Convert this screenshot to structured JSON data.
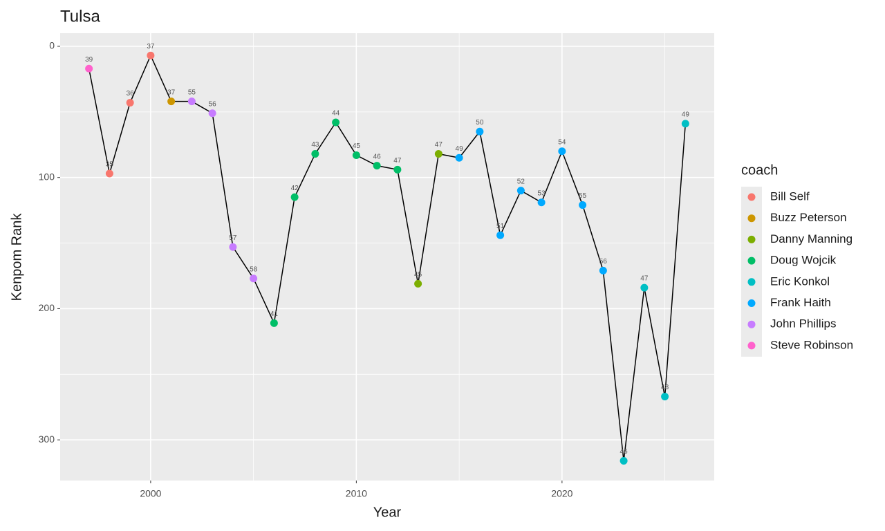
{
  "chart_data": {
    "type": "line",
    "title": "Tulsa",
    "x_label": "Year",
    "y_label": "Kenpom Rank",
    "x": [
      1997,
      1998,
      1999,
      2000,
      2001,
      2002,
      2003,
      2004,
      2005,
      2006,
      2007,
      2008,
      2009,
      2010,
      2011,
      2012,
      2013,
      2014,
      2015,
      2016,
      2017,
      2018,
      2019,
      2020,
      2021,
      2022,
      2023,
      2024,
      2025,
      2026
    ],
    "values": [
      17,
      97,
      43,
      7,
      42,
      42,
      51,
      153,
      177,
      211,
      115,
      82,
      58,
      83,
      91,
      94,
      181,
      82,
      85,
      65,
      144,
      110,
      119,
      80,
      121,
      171,
      316,
      184,
      267,
      59
    ],
    "point_labels": [
      39,
      35,
      36,
      37,
      37,
      55,
      56,
      57,
      58,
      41,
      42,
      43,
      44,
      45,
      46,
      47,
      45,
      47,
      49,
      50,
      51,
      52,
      53,
      54,
      55,
      56,
      46,
      47,
      48,
      49
    ],
    "coach": [
      "Steve Robinson",
      "Bill Self",
      "Bill Self",
      "Bill Self",
      "Buzz Peterson",
      "John Phillips",
      "John Phillips",
      "John Phillips",
      "John Phillips",
      "Doug Wojcik",
      "Doug Wojcik",
      "Doug Wojcik",
      "Doug Wojcik",
      "Doug Wojcik",
      "Doug Wojcik",
      "Doug Wojcik",
      "Danny Manning",
      "Danny Manning",
      "Frank Haith",
      "Frank Haith",
      "Frank Haith",
      "Frank Haith",
      "Frank Haith",
      "Frank Haith",
      "Frank Haith",
      "Frank Haith",
      "Eric Konkol",
      "Eric Konkol",
      "Eric Konkol",
      "Eric Konkol"
    ],
    "legend_title": "coach",
    "coaches": [
      {
        "name": "Bill Self",
        "color": "#F8766D"
      },
      {
        "name": "Buzz Peterson",
        "color": "#CD9600"
      },
      {
        "name": "Danny Manning",
        "color": "#7CAE00"
      },
      {
        "name": "Doug Wojcik",
        "color": "#00BE67"
      },
      {
        "name": "Eric Konkol",
        "color": "#00BFC4"
      },
      {
        "name": "Frank Haith",
        "color": "#00A9FF"
      },
      {
        "name": "John Phillips",
        "color": "#C77CFF"
      },
      {
        "name": "Steve Robinson",
        "color": "#FF61CC"
      }
    ],
    "line_color": "#000000",
    "xlim": [
      1995.6,
      2027.4
    ],
    "xticks": [
      2000,
      2010,
      2020
    ],
    "x_minor_ticks": [
      2005,
      2015,
      2025
    ],
    "ylim": [
      -10,
      331
    ],
    "yticks": [
      0,
      100,
      200,
      300
    ],
    "y_minor_ticks": [
      50,
      150,
      250
    ],
    "y_reversed": true,
    "grid": true,
    "legend_position": "right"
  }
}
